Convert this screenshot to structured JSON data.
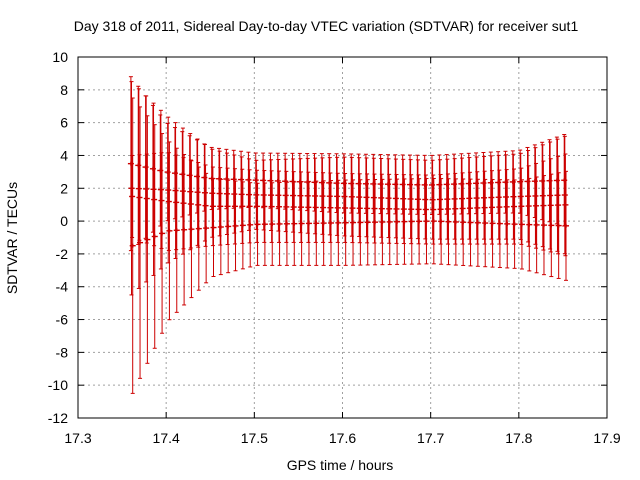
{
  "chart_data": {
    "type": "scatter",
    "title": "Day 318 of 2011, Sidereal Day-to-day VTEC variation (SDTVAR) for receiver sut1",
    "xlabel": "GPS time / hours",
    "ylabel": "SDTVAR / TECUs",
    "xlim": [
      17.3,
      17.9
    ],
    "ylim": [
      -12,
      10
    ],
    "x_ticks": [
      "17.3",
      "17.4",
      "17.5",
      "17.6",
      "17.7",
      "17.8",
      "17.9"
    ],
    "y_ticks": [
      "-12",
      "-10",
      "-8",
      "-6",
      "-4",
      "-2",
      "0",
      "2",
      "4",
      "6",
      "8",
      "10"
    ],
    "grid": true,
    "legend": "none",
    "color": "#cc0000",
    "x_start": 17.36,
    "x_end": 17.858,
    "x_step": 0.00833,
    "series": [
      {
        "keys": [
          [
            17.36,
            3.5,
            5.3
          ],
          [
            17.4,
            3.0,
            3.0
          ],
          [
            17.45,
            2.6,
            1.9
          ],
          [
            17.5,
            2.5,
            1.65
          ],
          [
            17.6,
            2.3,
            1.8
          ],
          [
            17.7,
            2.2,
            1.8
          ],
          [
            17.8,
            2.4,
            1.9
          ],
          [
            17.858,
            2.5,
            2.9
          ]
        ]
      },
      {
        "keys": [
          [
            17.36,
            2.0,
            6.5
          ],
          [
            17.4,
            1.9,
            4.5
          ],
          [
            17.45,
            1.7,
            2.7
          ],
          [
            17.5,
            1.6,
            2.1
          ],
          [
            17.6,
            1.5,
            2.4
          ],
          [
            17.7,
            1.3,
            2.4
          ],
          [
            17.8,
            1.5,
            2.6
          ],
          [
            17.858,
            1.6,
            3.7
          ]
        ]
      },
      {
        "keys": [
          [
            17.36,
            1.5,
            2.5
          ],
          [
            17.4,
            1.2,
            3.0
          ],
          [
            17.45,
            0.9,
            2.4
          ],
          [
            17.5,
            0.9,
            2.2
          ],
          [
            17.6,
            0.8,
            2.1
          ],
          [
            17.7,
            0.7,
            2.1
          ],
          [
            17.8,
            0.9,
            2.3
          ],
          [
            17.858,
            1.0,
            3.2
          ]
        ]
      },
      {
        "keys": [
          [
            17.36,
            -1.5,
            9.0
          ],
          [
            17.4,
            -0.6,
            5.5
          ],
          [
            17.45,
            -0.4,
            3.0
          ],
          [
            17.5,
            -0.2,
            2.5
          ],
          [
            17.6,
            -0.1,
            2.6
          ],
          [
            17.7,
            0.0,
            2.6
          ],
          [
            17.8,
            -0.2,
            2.7
          ],
          [
            17.858,
            -0.3,
            3.4
          ]
        ]
      }
    ]
  }
}
